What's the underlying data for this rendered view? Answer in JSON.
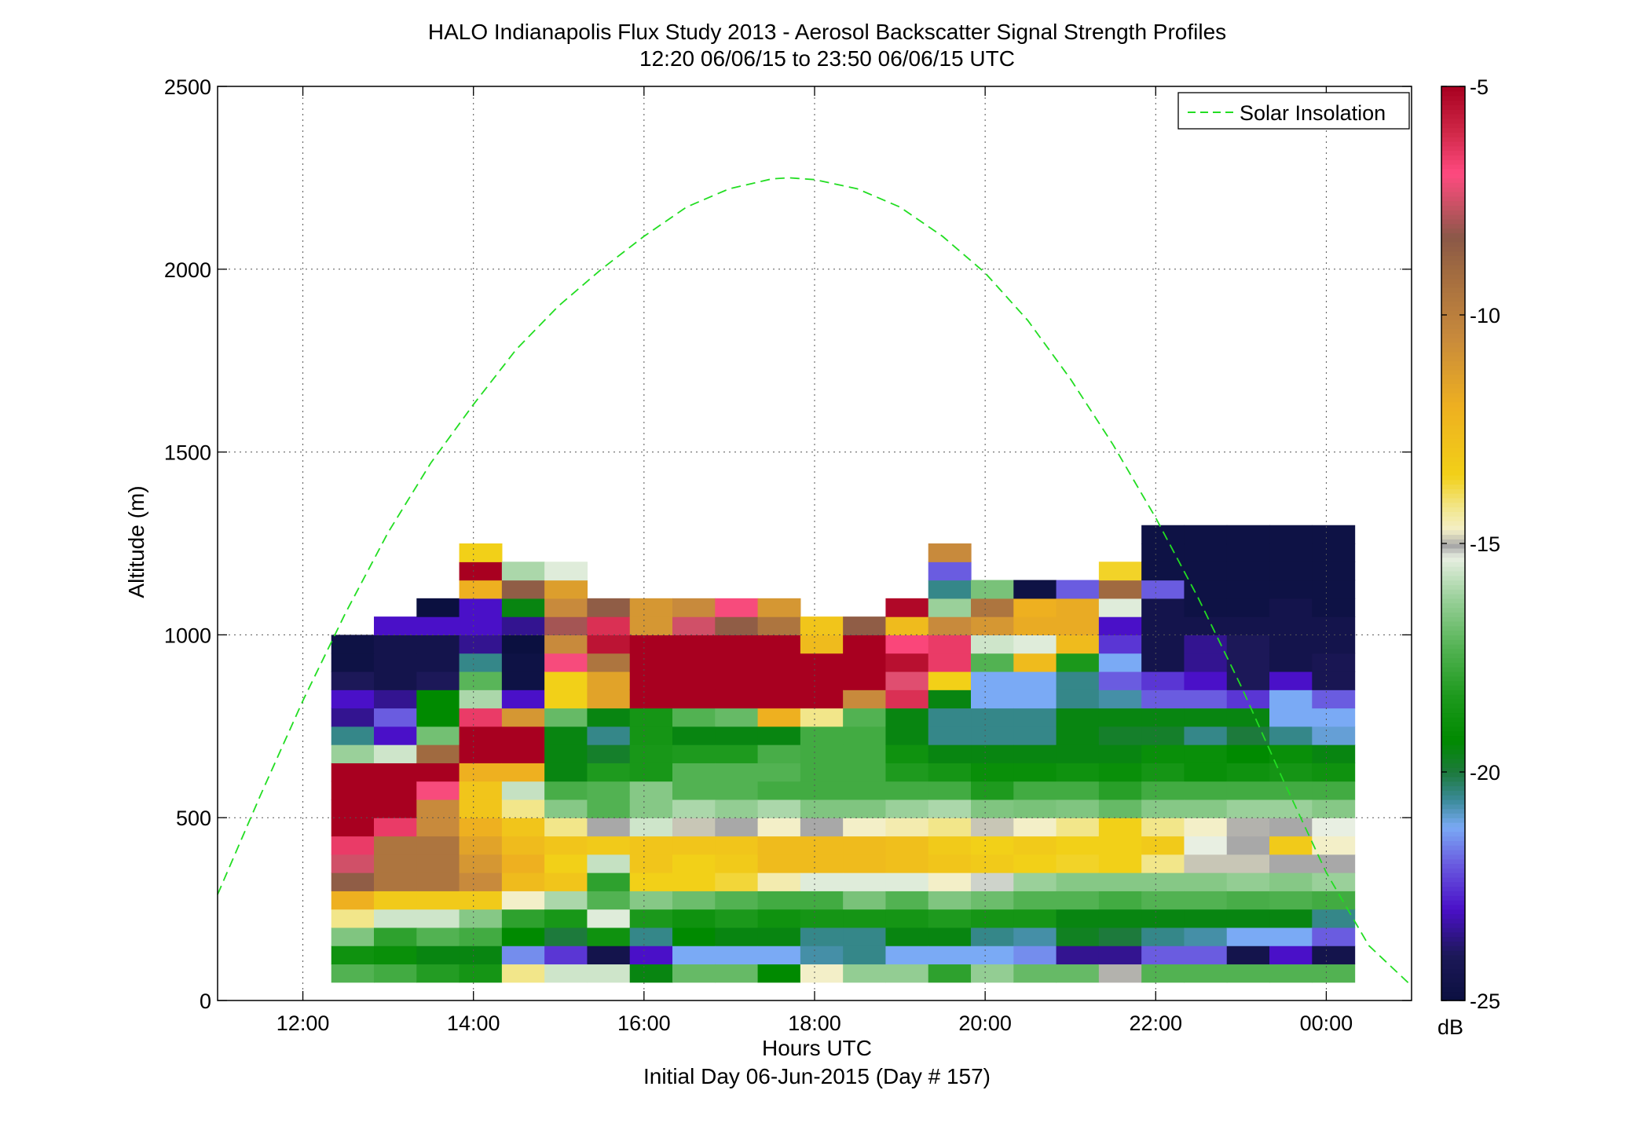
{
  "chart_data": {
    "type": "heatmap",
    "title": "HALO Indianapolis Flux Study 2013 - Aerosol Backscatter Signal Strength Profiles",
    "subtitle": "12:20 06/06/15 to 23:50 06/06/15  UTC",
    "xlabel": "Hours UTC",
    "xlabel2": "Initial Day 06-Jun-2015 (Day # 157)",
    "ylabel": "Altitude (m)",
    "xlim": [
      11.0,
      25.0
    ],
    "ylim": [
      0,
      2500
    ],
    "grid": true,
    "legend": {
      "placement": "top-right",
      "entries": [
        "Solar Insolation"
      ],
      "series_color": "#22dd22"
    },
    "x_ticks": [
      {
        "value": 12,
        "label": "12:00"
      },
      {
        "value": 14,
        "label": "14:00"
      },
      {
        "value": 16,
        "label": "16:00"
      },
      {
        "value": 18,
        "label": "18:00"
      },
      {
        "value": 20,
        "label": "20:00"
      },
      {
        "value": 22,
        "label": "22:00"
      },
      {
        "value": 24,
        "label": "00:00"
      }
    ],
    "y_ticks": [
      {
        "value": 0,
        "label": "0"
      },
      {
        "value": 500,
        "label": "500"
      },
      {
        "value": 1000,
        "label": "1000"
      },
      {
        "value": 1500,
        "label": "1500"
      },
      {
        "value": 2000,
        "label": "2000"
      },
      {
        "value": 2500,
        "label": "2500"
      }
    ],
    "colorbar": {
      "unit": "dB",
      "range": [
        -25,
        -5
      ],
      "ticks": [
        {
          "value": -5,
          "label": "-5"
        },
        {
          "value": -10,
          "label": "-10"
        },
        {
          "value": -15,
          "label": "-15"
        },
        {
          "value": -20,
          "label": "-20"
        },
        {
          "value": -25,
          "label": "-25"
        }
      ],
      "colormap": [
        {
          "v": -25,
          "c": "#0b1040"
        },
        {
          "v": -24,
          "c": "#1c1858"
        },
        {
          "v": -23,
          "c": "#4a10c8"
        },
        {
          "v": -22,
          "c": "#6a5ce0"
        },
        {
          "v": -21.2,
          "c": "#7aaaf5"
        },
        {
          "v": -20.6,
          "c": "#3a8a98"
        },
        {
          "v": -20,
          "c": "#1d7a3c"
        },
        {
          "v": -19.3,
          "c": "#008a00"
        },
        {
          "v": -18.3,
          "c": "#1e9a1e"
        },
        {
          "v": -17.3,
          "c": "#52b252"
        },
        {
          "v": -16.2,
          "c": "#9ad09a"
        },
        {
          "v": -15.3,
          "c": "#e8efe2"
        },
        {
          "v": -15.05,
          "c": "#a8a8a8"
        },
        {
          "v": -14.7,
          "c": "#f3efc8"
        },
        {
          "v": -14.2,
          "c": "#f2e68a"
        },
        {
          "v": -13.5,
          "c": "#f2d018"
        },
        {
          "v": -12,
          "c": "#eeb020"
        },
        {
          "v": -10.5,
          "c": "#c88a3c"
        },
        {
          "v": -9,
          "c": "#a06a40"
        },
        {
          "v": -8.3,
          "c": "#8a5848"
        },
        {
          "v": -7.5,
          "c": "#d05068"
        },
        {
          "v": -6.9,
          "c": "#ff4a80"
        },
        {
          "v": -6,
          "c": "#d02848"
        },
        {
          "v": -5,
          "c": "#a80020"
        }
      ]
    },
    "heatmap": {
      "x_start": 12.333,
      "x_step": 0.5,
      "y_start": 50,
      "y_step": 50,
      "note_rows": "each column lists dB values from lowest bin (50-100 m) upward",
      "columns": [
        [
          -17.3,
          -18.8,
          -16.6,
          -14.2,
          -12,
          -8.5,
          -7.5,
          -6.5,
          -5,
          -5,
          -5,
          -5,
          -16.2,
          -20.5,
          -23.5,
          -23,
          -24,
          -24.8,
          -24.8
        ],
        [
          -17.6,
          -19,
          -18,
          -15.6,
          -13.2,
          -9.5,
          -9.5,
          -9.5,
          -6.5,
          -5,
          -5,
          -5,
          -15.6,
          -23,
          -22,
          -23.5,
          -24.5,
          -24.5,
          -24.5,
          -23
        ],
        [
          -18.2,
          -19.5,
          -17.3,
          -15.6,
          -13.2,
          -9.5,
          -9.5,
          -9.5,
          -10.5,
          -10.5,
          -7,
          -5,
          -9,
          -16.8,
          -19.3,
          -19.3,
          -24,
          -24.5,
          -24.5,
          -23,
          -25
        ],
        [
          -18.6,
          -19.5,
          -17.6,
          -16.5,
          -13.2,
          -10.5,
          -11,
          -11.5,
          -12,
          -13,
          -13,
          -12,
          -5,
          -5,
          -6.5,
          -16,
          -17.2,
          -20.5,
          -23.5,
          -23,
          -23,
          -12,
          -5,
          -13.5
        ],
        [
          -14.2,
          -21.5,
          -19.3,
          -18,
          -14.7,
          -12.5,
          -12,
          -12.5,
          -13,
          -14.2,
          -15.7,
          -12,
          -5,
          -5,
          -11,
          -23,
          -24.8,
          -24.8,
          -25,
          -23.5,
          -19.5,
          -8.5,
          -16
        ],
        [
          -15.6,
          -22.5,
          -20,
          -18.5,
          -16,
          -13,
          -13.5,
          -13,
          -14.2,
          -16.5,
          -17.5,
          -19.5,
          -19.5,
          -19.5,
          -17,
          -13.5,
          -13.5,
          -7,
          -10.5,
          -8,
          -10.5,
          -11.3,
          -15.4
        ],
        [
          -15.6,
          -24.5,
          -18.8,
          -15.4,
          -17.3,
          -18,
          -15.7,
          -13.2,
          -15.05,
          -17.3,
          -17.3,
          -18.3,
          -19.8,
          -20.5,
          -19.5,
          -11.5,
          -11.5,
          -9.5,
          -5.5,
          -6.2,
          -8.5
        ],
        [
          -19.5,
          -23,
          -20.5,
          -18.4,
          -16.5,
          -13.5,
          -13,
          -13,
          -15.6,
          -16.5,
          -16.5,
          -18.5,
          -18.5,
          -18.6,
          -18.6,
          -5,
          -5,
          -5,
          -5,
          -11,
          -11
        ],
        [
          -17,
          -21.2,
          -19.3,
          -18.8,
          -16.9,
          -13.5,
          -13.5,
          -13,
          -14.9,
          -16,
          -17.3,
          -17.3,
          -18.3,
          -19.5,
          -17.3,
          -5,
          -5,
          -5,
          -5,
          -7.5,
          -10.5
        ],
        [
          -17,
          -21.2,
          -19.5,
          -18.4,
          -17.3,
          -13.7,
          -13.2,
          -13,
          -15.05,
          -16.3,
          -17.3,
          -17.3,
          -18.3,
          -19.5,
          -17,
          -5,
          -5,
          -5,
          -5,
          -8.5,
          -7
        ],
        [
          -19.3,
          -21.2,
          -19.5,
          -18.8,
          -17.6,
          -14.5,
          -12.5,
          -12.5,
          -14.7,
          -16,
          -17.6,
          -17.3,
          -17.5,
          -19.5,
          -12,
          -5,
          -5,
          -5,
          -5,
          -9.5,
          -11
        ],
        [
          -14.7,
          -20.7,
          -20.5,
          -18.6,
          -17.6,
          -15.4,
          -12.5,
          -12.5,
          -15.05,
          -16.6,
          -17.6,
          -17.6,
          -17.6,
          -17.6,
          -14.2,
          -5,
          -5,
          -5,
          -12.5,
          -13
        ],
        [
          -16.3,
          -20.5,
          -20.5,
          -18.6,
          -16.7,
          -15.4,
          -12.5,
          -12.5,
          -14.7,
          -16.6,
          -17.6,
          -17.6,
          -17.6,
          -17.6,
          -17.3,
          -10.5,
          -5,
          -5,
          -5,
          -8.5
        ],
        [
          -16.3,
          -21.2,
          -19.5,
          -18.6,
          -17.3,
          -15.4,
          -12.7,
          -12.7,
          -14.5,
          -16.2,
          -17.6,
          -18.3,
          -18.8,
          -19.5,
          -19.5,
          -6.2,
          -7.3,
          -5.4,
          -6.8,
          -12.5,
          -5.2
        ],
        [
          -18,
          -21.2,
          -19.5,
          -18.3,
          -16.6,
          -14.7,
          -13,
          -13.2,
          -14.2,
          -16,
          -17.6,
          -18.6,
          -19.5,
          -20.5,
          -20.5,
          -19.5,
          -13.5,
          -6.5,
          -6.5,
          -10.5,
          -16.2,
          -20.5,
          -22,
          -10.5
        ],
        [
          -16.3,
          -21.2,
          -20.5,
          -18.6,
          -16.9,
          -15.2,
          -13.2,
          -13.5,
          -14.9,
          -16.6,
          -18.3,
          -19,
          -19.5,
          -20.5,
          -20.5,
          -21.2,
          -21.2,
          -17.3,
          -15.6,
          -11,
          -9.5,
          -16.7
        ],
        [
          -17,
          -21.5,
          -20.7,
          -18.6,
          -17.3,
          -16.2,
          -13.5,
          -13.2,
          -14.7,
          -16.7,
          -17.6,
          -19,
          -19.5,
          -20.5,
          -20.5,
          -21.2,
          -21.2,
          -12.5,
          -15.4,
          -11.8,
          -12,
          -24.8
        ],
        [
          -17,
          -23.5,
          -19.7,
          -19.5,
          -17.3,
          -16.5,
          -13.6,
          -13.5,
          -14.2,
          -16.6,
          -17.6,
          -18.8,
          -19.5,
          -19.5,
          -19.5,
          -20.5,
          -20.5,
          -18.4,
          -12.5,
          -11.8,
          -11.8,
          -22
        ],
        [
          -15,
          -23.5,
          -20,
          -19.5,
          -17.6,
          -16.5,
          -13.5,
          -13.5,
          -13.5,
          -17,
          -18.1,
          -19,
          -19.5,
          -19.8,
          -19.5,
          -20.7,
          -22,
          -21.2,
          -22.5,
          -23,
          -15.4,
          -9,
          -13.6
        ],
        [
          -17.3,
          -22,
          -20.5,
          -19.5,
          -17.3,
          -16.5,
          -14.2,
          -13.2,
          -14.2,
          -16.5,
          -17.6,
          -18.6,
          -19,
          -19.8,
          -19.5,
          -22,
          -22.5,
          -24.5,
          -24.5,
          -24.5,
          -24.5,
          -22,
          -24.8,
          -24.8,
          -24.8
        ],
        [
          -17.3,
          -22,
          -20.7,
          -19.5,
          -17.3,
          -16.5,
          -14.9,
          -15.3,
          -14.7,
          -16.5,
          -17.6,
          -19,
          -19,
          -20.5,
          -19.5,
          -22,
          -23,
          -23.5,
          -23.5,
          -24.5,
          -24.8,
          -24.8,
          -24.8,
          -24.8,
          -24.8
        ],
        [
          -17.3,
          -24.5,
          -21.2,
          -19.5,
          -17.5,
          -16.3,
          -14.9,
          -15.05,
          -15,
          -16.2,
          -17.6,
          -18.8,
          -19.3,
          -20,
          -19.5,
          -22.5,
          -24,
          -24,
          -24,
          -24.5,
          -24.8,
          -24.8,
          -24.8,
          -24.8,
          -24.8
        ],
        [
          -17.3,
          -23,
          -21.2,
          -19.5,
          -17.4,
          -16.5,
          -15.05,
          -13.2,
          -15.05,
          -16.2,
          -17.6,
          -18.6,
          -19,
          -20.5,
          -21.2,
          -21.2,
          -23,
          -24.5,
          -24.5,
          -24.5,
          -24.5,
          -24.8,
          -24.8,
          -24.8,
          -24.8
        ],
        [
          -17.3,
          -24.5,
          -22,
          -20.5,
          -17.6,
          -16.2,
          -15.05,
          -14.7,
          -15.3,
          -16.5,
          -17.6,
          -18.8,
          -19.5,
          -21,
          -21.2,
          -22,
          -24.2,
          -24.2,
          -24.5,
          -24.5,
          -24.8,
          -24.8,
          -24.8,
          -24.8,
          -24.8
        ]
      ]
    },
    "solar_insolation": {
      "peak_x": 17.7,
      "peak_y": 2250,
      "points": [
        [
          11.0,
          290
        ],
        [
          11.5,
          560
        ],
        [
          12.0,
          820
        ],
        [
          12.5,
          1060
        ],
        [
          13.0,
          1280
        ],
        [
          13.5,
          1470
        ],
        [
          14.0,
          1630
        ],
        [
          14.5,
          1780
        ],
        [
          15.0,
          1900
        ],
        [
          15.5,
          2000
        ],
        [
          16.0,
          2090
        ],
        [
          16.5,
          2170
        ],
        [
          17.0,
          2220
        ],
        [
          17.5,
          2247
        ],
        [
          17.7,
          2250
        ],
        [
          18.0,
          2245
        ],
        [
          18.5,
          2220
        ],
        [
          19.0,
          2170
        ],
        [
          19.5,
          2090
        ],
        [
          20.0,
          1990
        ],
        [
          20.5,
          1860
        ],
        [
          21.0,
          1700
        ],
        [
          21.5,
          1520
        ],
        [
          22.0,
          1320
        ],
        [
          22.5,
          1100
        ],
        [
          23.0,
          860
        ],
        [
          23.5,
          600
        ],
        [
          24.0,
          350
        ],
        [
          24.5,
          150
        ],
        [
          25.0,
          40
        ]
      ]
    }
  }
}
